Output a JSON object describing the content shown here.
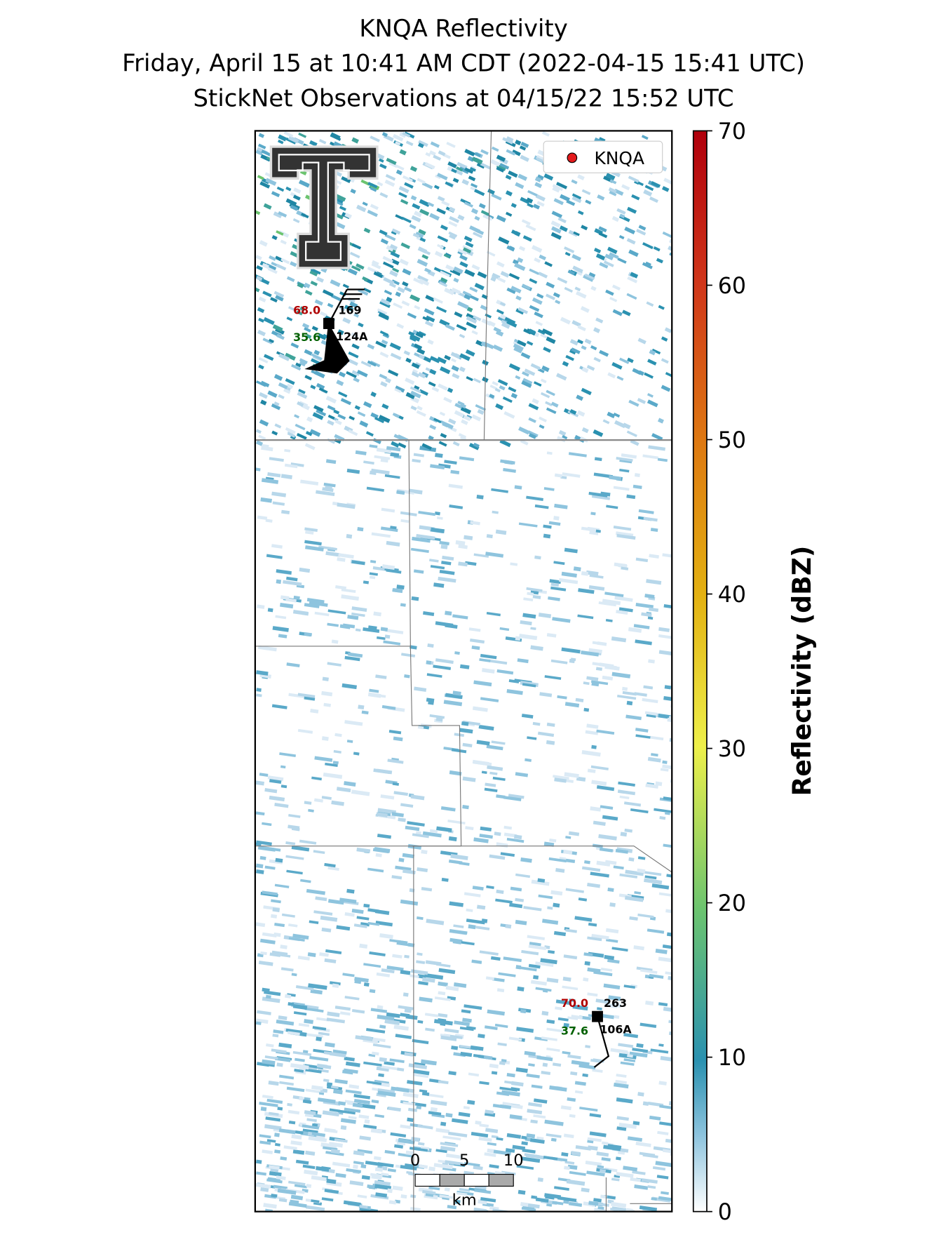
{
  "header": {
    "title": "KNQA Reflectivity",
    "subtitle": "Friday, April 15 at 10:41 AM CDT (2022-04-15 15:41 UTC)",
    "observations": "StickNet Observations at 04/15/22 15:52 UTC"
  },
  "legend": {
    "label": "KNQA"
  },
  "stations": [
    {
      "temperature": "68.0",
      "wind_direction": "169",
      "dewpoint": "35.6",
      "id": "124A"
    },
    {
      "temperature": "70.0",
      "wind_direction": "263",
      "dewpoint": "37.6",
      "id": "106A"
    }
  ],
  "scale_bar": {
    "labels": [
      "0",
      "5",
      "10"
    ],
    "unit": "km"
  },
  "colorbar": {
    "label": "Reflectivity (dBZ)",
    "range": [
      0,
      70
    ],
    "ticks": [
      0,
      10,
      20,
      30,
      40,
      50,
      60,
      70
    ]
  }
}
